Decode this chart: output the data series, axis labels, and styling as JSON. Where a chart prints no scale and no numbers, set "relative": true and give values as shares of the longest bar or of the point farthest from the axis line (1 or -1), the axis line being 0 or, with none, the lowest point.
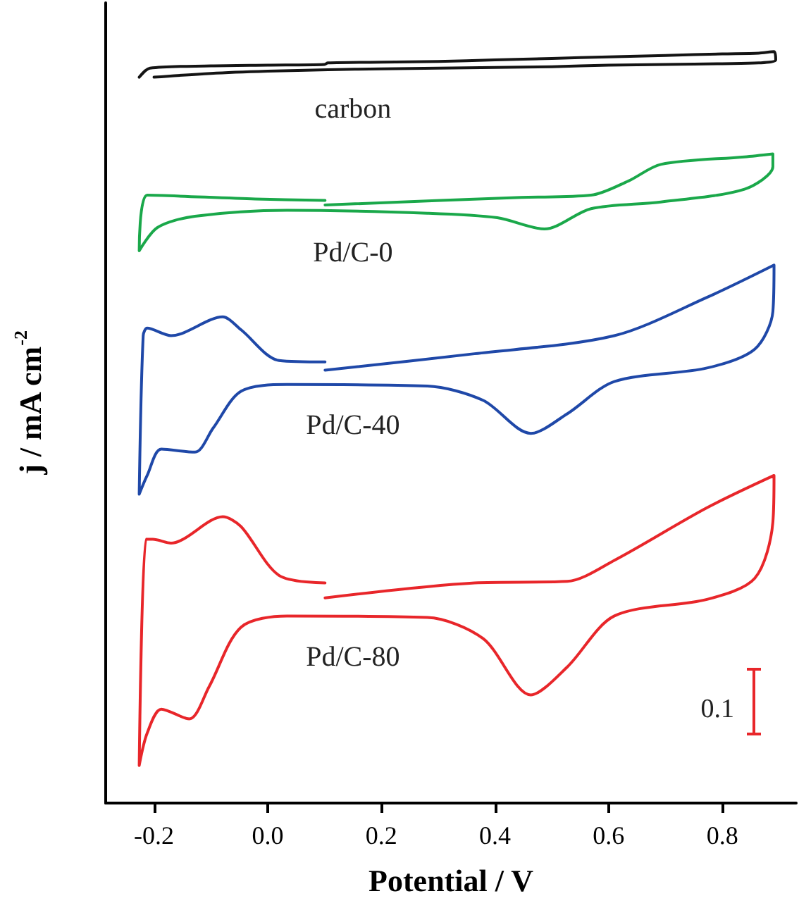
{
  "chart_data": {
    "type": "line",
    "relative": true,
    "xlabel": "Potential / V",
    "ylabel": "j / mA cm$^{-2}$",
    "xlim": [
      -0.285,
      0.93
    ],
    "xticks": [
      -0.2,
      {
        "value": 0,
        "label": "0.0"
      },
      0.2,
      0.4,
      0.6,
      0.8
    ],
    "grid": false,
    "legend": false,
    "marker": "none",
    "line_style": "solid",
    "annotations": [
      "0.1"
    ],
    "series": [
      {
        "name": "carbon",
        "color": "#141414",
        "x": [
          -0.226,
          -0.207,
          -0.1,
          0,
          0.1,
          0.106,
          0.2,
          0.3,
          0.4,
          0.5,
          0.6,
          0.7,
          0.8,
          0.864,
          0.891,
          0.894,
          0.864,
          0.8,
          0.7,
          0.6,
          0.5,
          0.4,
          0.3,
          0.2,
          0.106,
          0,
          -0.1,
          -0.2
        ],
        "values": [
          0.966,
          0.978,
          0.981,
          0.982,
          0.983,
          0.985,
          0.986,
          0.987,
          0.989,
          0.991,
          0.993,
          0.995,
          0.997,
          0.998,
          1,
          0.989,
          0.985,
          0.984,
          0.983,
          0.982,
          0.98,
          0.979,
          0.978,
          0.977,
          0.976,
          0.974,
          0.971,
          0.966
        ]
      },
      {
        "name": "Pd/C-0",
        "color": "#1aa84a",
        "x": [
          0.101,
          -0.022,
          -0.212,
          -0.226,
          -0.194,
          -0.128,
          0.034,
          0.281,
          0.404,
          0.487,
          0.569,
          0.692,
          0.839,
          0.889,
          0.889,
          0.839,
          0.692,
          0.635,
          0.569,
          0.446,
          0.101
        ],
        "values": [
          0.802,
          0.804,
          0.809,
          0.735,
          0.766,
          0.781,
          0.789,
          0.785,
          0.779,
          0.764,
          0.791,
          0.8,
          0.817,
          0.847,
          0.864,
          0.86,
          0.85,
          0.828,
          0.809,
          0.806,
          0.796
        ]
      },
      {
        "name": "Pd/C-40",
        "color": "#1f48a8",
        "x": [
          0.101,
          0.02,
          -0.047,
          -0.079,
          -0.17,
          -0.212,
          -0.219,
          -0.226,
          -0.212,
          -0.187,
          -0.128,
          -0.096,
          -0.047,
          0.034,
          0.281,
          0.379,
          0.463,
          0.527,
          0.61,
          0.773,
          0.857,
          0.889,
          0.891,
          0.773,
          0.61,
          0.364,
          0.101
        ],
        "values": [
          0.587,
          0.589,
          0.63,
          0.647,
          0.622,
          0.632,
          0.622,
          0.411,
          0.436,
          0.471,
          0.467,
          0.499,
          0.548,
          0.557,
          0.555,
          0.536,
          0.492,
          0.518,
          0.561,
          0.579,
          0.604,
          0.654,
          0.716,
          0.673,
          0.622,
          0.598,
          0.576
        ]
      },
      {
        "name": "Pd/C-80",
        "color": "#e8262a",
        "x": [
          0.101,
          0.02,
          -0.047,
          -0.079,
          -0.17,
          -0.202,
          -0.214,
          -0.226,
          -0.212,
          -0.187,
          -0.138,
          -0.103,
          -0.047,
          0.034,
          0.281,
          0.379,
          0.463,
          0.527,
          0.61,
          0.773,
          0.857,
          0.889,
          0.891,
          0.773,
          0.61,
          0.527,
          0.364,
          0.101
        ],
        "values": [
          0.293,
          0.303,
          0.368,
          0.381,
          0.346,
          0.351,
          0.351,
          0.05,
          0.093,
          0.125,
          0.112,
          0.155,
          0.234,
          0.249,
          0.247,
          0.219,
          0.144,
          0.181,
          0.249,
          0.271,
          0.299,
          0.374,
          0.436,
          0.393,
          0.323,
          0.295,
          0.293,
          0.273
        ]
      }
    ]
  }
}
